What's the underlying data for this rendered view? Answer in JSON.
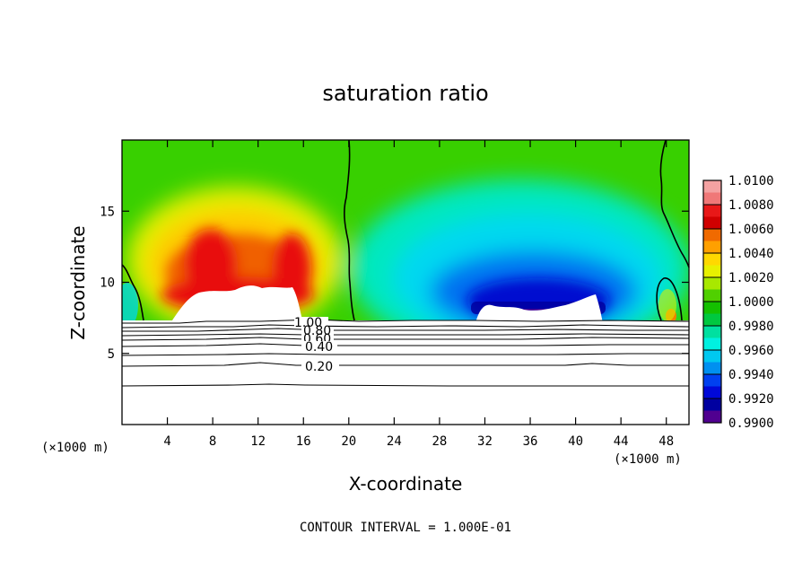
{
  "chart_data": {
    "type": "heatmap",
    "title": "saturation ratio",
    "xlabel": "X-coordinate",
    "ylabel": "Z-coordinate",
    "x_units_left": "(×1000 m)",
    "x_units_right": "(×1000 m)",
    "xlim": [
      0,
      50
    ],
    "ylim": [
      0,
      20
    ],
    "x_ticks": [
      4,
      8,
      12,
      16,
      20,
      24,
      28,
      32,
      36,
      40,
      44,
      48
    ],
    "y_ticks": [
      5,
      10,
      15
    ],
    "footer": "CONTOUR INTERVAL = 1.000E-01",
    "colorbar": {
      "labels": [
        "1.0100",
        "1.0080",
        "1.0060",
        "1.0040",
        "1.0020",
        "1.0000",
        "0.9980",
        "0.9960",
        "0.9940",
        "0.9920",
        "0.9900"
      ],
      "colors": [
        "#f4a2a2",
        "#f07878",
        "#e81818",
        "#d00000",
        "#f06a00",
        "#ffa000",
        "#ffd800",
        "#e8f000",
        "#a8e800",
        "#50d000",
        "#14c000",
        "#00c840",
        "#00e0a0",
        "#00f0e0",
        "#00c8f0",
        "#0090f0",
        "#0040f0",
        "#0008d8",
        "#0000a0",
        "#500090"
      ]
    },
    "contour_labels": [
      "1.00",
      "0.80",
      "0.60",
      "0.40",
      "0.20"
    ],
    "contour_levels_z": [
      7.0,
      6.6,
      6.2,
      5.8,
      5.4,
      5.0,
      4.2,
      2.8
    ],
    "surface_height": 7.2
  }
}
